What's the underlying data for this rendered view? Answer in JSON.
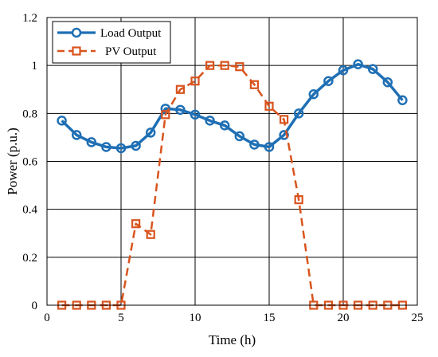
{
  "chart_data": {
    "type": "line",
    "xlabel": "Time (h)",
    "ylabel": "Power (p.u.)",
    "xlim": [
      0,
      25
    ],
    "ylim": [
      0,
      1.2
    ],
    "xticks": [
      0,
      5,
      10,
      15,
      20,
      25
    ],
    "yticks": [
      0,
      0.2,
      0.4,
      0.6,
      0.8,
      1,
      1.2
    ],
    "xtick_labels": [
      "0",
      "5",
      "10",
      "15",
      "20",
      "25"
    ],
    "ytick_labels": [
      "0",
      "0.2",
      "0.4",
      "0.6",
      "0.8",
      "1",
      "1.2"
    ],
    "grid": true,
    "legend_position": "top-left",
    "series": [
      {
        "name": "Load Output",
        "color": "#1f6fb4",
        "line_style": "solid",
        "marker": "circle",
        "x": [
          1,
          2,
          3,
          4,
          5,
          6,
          7,
          8,
          9,
          10,
          11,
          12,
          13,
          14,
          15,
          16,
          17,
          18,
          19,
          20,
          21,
          22,
          23,
          24
        ],
        "y": [
          0.77,
          0.71,
          0.68,
          0.66,
          0.655,
          0.665,
          0.72,
          0.82,
          0.815,
          0.795,
          0.77,
          0.75,
          0.705,
          0.67,
          0.66,
          0.71,
          0.8,
          0.88,
          0.935,
          0.98,
          1.005,
          0.985,
          0.93,
          0.855
        ]
      },
      {
        "name": "PV Output",
        "color": "#d9541e",
        "line_style": "dashed",
        "marker": "square",
        "x": [
          1,
          2,
          3,
          4,
          5,
          6,
          7,
          8,
          9,
          10,
          11,
          12,
          13,
          14,
          15,
          16,
          17,
          18,
          19,
          20,
          21,
          22,
          23,
          24
        ],
        "y": [
          0,
          0,
          0,
          0,
          0,
          0.34,
          0.295,
          0.795,
          0.9,
          0.935,
          1.0,
          1.0,
          0.995,
          0.92,
          0.83,
          0.775,
          0.44,
          0,
          0,
          0,
          0,
          0,
          0,
          0
        ]
      }
    ]
  }
}
